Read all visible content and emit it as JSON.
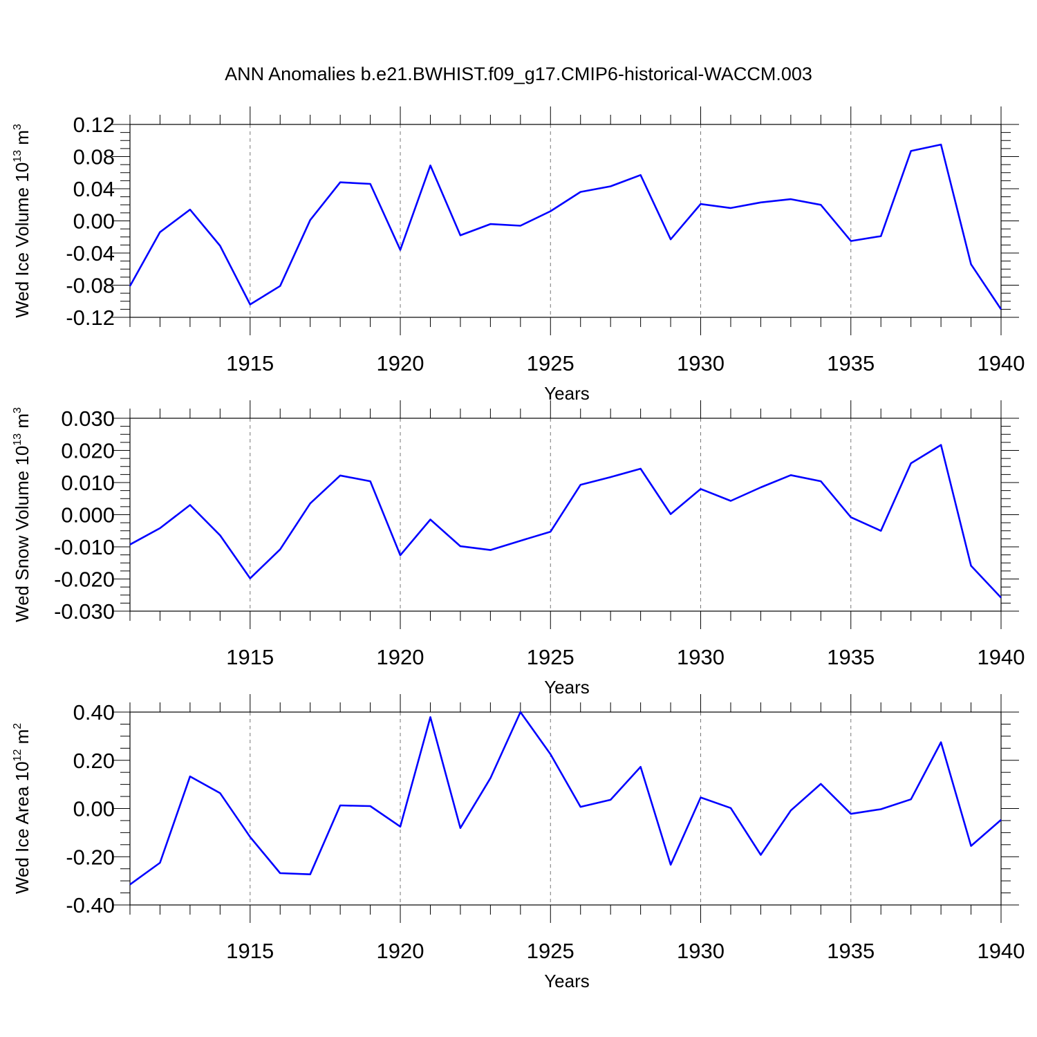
{
  "title": "ANN Anomalies b.e21.BWHIST.f09_g17.CMIP6-historical-WACCM.003",
  "line_color": "#0000ff",
  "chart_data": [
    {
      "type": "line",
      "xlabel": "Years",
      "ylabel": {
        "name": "Wed Ice Volume",
        "power": "13",
        "unit": "m",
        "unit_power": "3"
      },
      "xlim": [
        1911,
        1940
      ],
      "ylim": [
        -0.12,
        0.12
      ],
      "xticks": [
        "1915",
        "1920",
        "1925",
        "1930",
        "1935",
        "1940"
      ],
      "yticks": [
        "0.12",
        "0.08",
        "0.04",
        "0.00",
        "-0.04",
        "-0.08",
        "-0.12"
      ],
      "grid": "vertical dashed at labeled years",
      "x": [
        1911,
        1912,
        1913,
        1914,
        1915,
        1916,
        1917,
        1918,
        1919,
        1920,
        1921,
        1922,
        1923,
        1924,
        1925,
        1926,
        1927,
        1928,
        1929,
        1930,
        1931,
        1932,
        1933,
        1934,
        1935,
        1936,
        1937,
        1938,
        1939,
        1940
      ],
      "values": [
        -0.081,
        -0.014,
        0.014,
        -0.031,
        -0.104,
        -0.081,
        0.001,
        0.048,
        0.046,
        -0.036,
        0.069,
        -0.018,
        -0.004,
        -0.006,
        0.012,
        0.036,
        0.043,
        0.057,
        -0.023,
        0.021,
        0.016,
        0.023,
        0.027,
        0.02,
        -0.025,
        -0.019,
        0.087,
        0.095,
        -0.054,
        -0.11
      ]
    },
    {
      "type": "line",
      "xlabel": "Years",
      "ylabel": {
        "name": "Wed Snow Volume",
        "power": "13",
        "unit": "m",
        "unit_power": "3"
      },
      "xlim": [
        1911,
        1940
      ],
      "ylim": [
        -0.03,
        0.03
      ],
      "xticks": [
        "1915",
        "1920",
        "1925",
        "1930",
        "1935",
        "1940"
      ],
      "yticks": [
        "0.030",
        "0.020",
        "0.010",
        "0.000",
        "-0.010",
        "-0.020",
        "-0.030"
      ],
      "grid": "vertical dashed at labeled years",
      "x": [
        1911,
        1912,
        1913,
        1914,
        1915,
        1916,
        1917,
        1918,
        1919,
        1920,
        1921,
        1922,
        1923,
        1924,
        1925,
        1926,
        1927,
        1928,
        1929,
        1930,
        1931,
        1932,
        1933,
        1934,
        1935,
        1936,
        1937,
        1938,
        1939,
        1940
      ],
      "values": [
        -0.0093,
        -0.0042,
        0.003,
        -0.0064,
        -0.0198,
        -0.0108,
        0.0035,
        0.0122,
        0.0104,
        -0.0126,
        -0.0015,
        -0.0098,
        -0.011,
        -0.0081,
        -0.0053,
        0.0093,
        0.0117,
        0.0143,
        0.0002,
        0.008,
        0.0043,
        0.0085,
        0.0123,
        0.0104,
        -0.0008,
        -0.005,
        0.016,
        0.0217,
        -0.0159,
        -0.0258
      ]
    },
    {
      "type": "line",
      "xlabel": "Years",
      "ylabel": {
        "name": "Wed Ice Area",
        "power": "12",
        "unit": "m",
        "unit_power": "2"
      },
      "xlim": [
        1911,
        1940
      ],
      "ylim": [
        -0.4,
        0.4
      ],
      "xticks": [
        "1915",
        "1920",
        "1925",
        "1930",
        "1935",
        "1940"
      ],
      "yticks": [
        "0.40",
        "0.20",
        "0.00",
        "-0.20",
        "-0.40"
      ],
      "grid": "vertical dashed at labeled years",
      "x": [
        1911,
        1912,
        1913,
        1914,
        1915,
        1916,
        1917,
        1918,
        1919,
        1920,
        1921,
        1922,
        1923,
        1924,
        1925,
        1926,
        1927,
        1928,
        1929,
        1930,
        1931,
        1932,
        1933,
        1934,
        1935,
        1936,
        1937,
        1938,
        1939,
        1940
      ],
      "values": [
        -0.315,
        -0.225,
        0.133,
        0.064,
        -0.118,
        -0.268,
        -0.273,
        0.013,
        0.01,
        -0.075,
        0.379,
        -0.081,
        0.126,
        0.4,
        0.225,
        0.007,
        0.036,
        0.173,
        -0.233,
        0.046,
        0.002,
        -0.192,
        -0.008,
        0.102,
        -0.022,
        -0.003,
        0.038,
        0.275,
        -0.155,
        -0.047
      ]
    }
  ]
}
